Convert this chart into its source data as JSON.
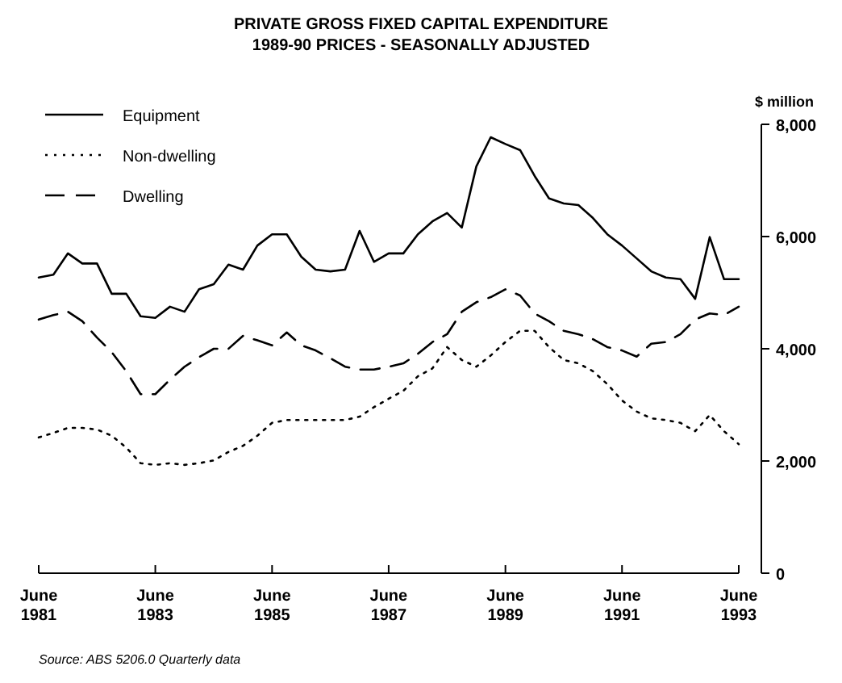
{
  "chart_data": {
    "type": "line",
    "title": "PRIVATE GROSS FIXED CAPITAL EXPENDITURE",
    "subtitle": "1989-90 PRICES - SEASONALLY ADJUSTED",
    "ylabel": "$ million",
    "legend": "top left",
    "grid": false,
    "x": [
      "1981-06",
      "1981-09",
      "1981-12",
      "1982-03",
      "1982-06",
      "1982-09",
      "1982-12",
      "1983-03",
      "1983-06",
      "1983-09",
      "1983-12",
      "1984-03",
      "1984-06",
      "1984-09",
      "1984-12",
      "1985-03",
      "1985-06",
      "1985-09",
      "1985-12",
      "1986-03",
      "1986-06",
      "1986-09",
      "1986-12",
      "1987-03",
      "1987-06",
      "1987-09",
      "1987-12",
      "1988-03",
      "1988-06",
      "1988-09",
      "1988-12",
      "1989-03",
      "1989-06",
      "1989-09",
      "1989-12",
      "1990-03",
      "1990-06",
      "1990-09",
      "1990-12",
      "1991-03",
      "1991-06",
      "1991-09",
      "1991-12",
      "1992-03",
      "1992-06",
      "1992-09",
      "1992-12",
      "1993-03",
      "1993-06"
    ],
    "series": [
      {
        "name": "Equipment",
        "color": "#000000",
        "line_style": "solid",
        "values": [
          5270,
          5320,
          5700,
          5520,
          5520,
          4980,
          4980,
          4580,
          4550,
          4750,
          4660,
          5060,
          5150,
          5500,
          5410,
          5840,
          6040,
          6040,
          5640,
          5410,
          5380,
          5410,
          6100,
          5550,
          5700,
          5700,
          6040,
          6270,
          6420,
          6160,
          7250,
          7770,
          7650,
          7540,
          7080,
          6680,
          6590,
          6560,
          6330,
          6040,
          5840,
          5610,
          5380,
          5270,
          5240,
          4890,
          5990,
          5240,
          5240
        ]
      },
      {
        "name": "Non-dwelling",
        "color": "#000000",
        "line_style": "dotted",
        "values": [
          2420,
          2500,
          2590,
          2590,
          2560,
          2450,
          2240,
          1960,
          1930,
          1960,
          1930,
          1960,
          2010,
          2160,
          2270,
          2450,
          2680,
          2730,
          2730,
          2730,
          2730,
          2730,
          2790,
          2960,
          3110,
          3250,
          3510,
          3650,
          4030,
          3800,
          3680,
          3880,
          4120,
          4320,
          4320,
          4030,
          3800,
          3740,
          3600,
          3370,
          3080,
          2880,
          2760,
          2730,
          2680,
          2530,
          2820,
          2530,
          2300
        ]
      },
      {
        "name": "Dwelling",
        "color": "#000000",
        "line_style": "dashed",
        "values": [
          4520,
          4600,
          4660,
          4490,
          4200,
          3940,
          3600,
          3190,
          3190,
          3450,
          3680,
          3850,
          4000,
          4000,
          4230,
          4150,
          4060,
          4290,
          4060,
          3970,
          3830,
          3680,
          3630,
          3630,
          3680,
          3740,
          3910,
          4120,
          4260,
          4660,
          4830,
          4920,
          5060,
          4950,
          4630,
          4490,
          4320,
          4260,
          4170,
          4030,
          3970,
          3860,
          4090,
          4120,
          4260,
          4520,
          4630,
          4600,
          4750
        ]
      }
    ],
    "xlim": [
      "1981-06",
      "1993-06"
    ],
    "xticks": [
      {
        "value": "1981-06",
        "label": "June\n1981"
      },
      {
        "value": "1983-06",
        "label": "June\n1983"
      },
      {
        "value": "1985-06",
        "label": "June\n1985"
      },
      {
        "value": "1987-06",
        "label": "June\n1987"
      },
      {
        "value": "1989-06",
        "label": "June\n1989"
      },
      {
        "value": "1991-06",
        "label": "June\n1991"
      },
      {
        "value": "1993-06",
        "label": "June\n1993"
      }
    ],
    "ylim": [
      0,
      8000
    ],
    "yticks": [
      {
        "value": 0,
        "label": "0"
      },
      {
        "value": 2000,
        "label": "2,000"
      },
      {
        "value": 4000,
        "label": "4,000"
      },
      {
        "value": 6000,
        "label": "6,000"
      },
      {
        "value": 8000,
        "label": "8,000"
      }
    ],
    "annotations": [
      "Source: ABS 5206.0 Quarterly data"
    ]
  }
}
